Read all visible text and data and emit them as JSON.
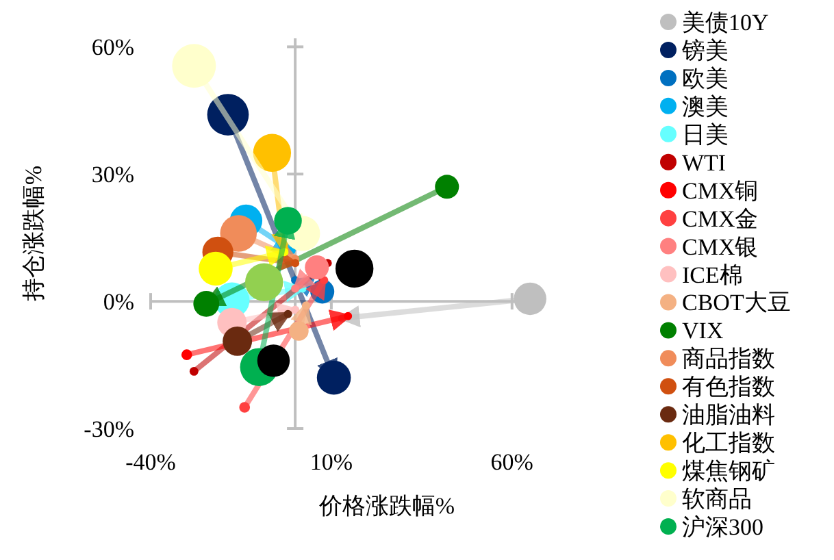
{
  "chart_data": {
    "type": "bubble",
    "xlabel": "价格涨跌幅%",
    "ylabel": "持仓涨跌幅%",
    "xlim": [
      -40,
      68
    ],
    "ylim": [
      -30,
      62
    ],
    "xticks": [
      {
        "value": -40,
        "label": "-40%"
      },
      {
        "value": 10,
        "label": "10%"
      },
      {
        "value": 60,
        "label": "60%"
      }
    ],
    "yticks": [
      {
        "value": -30,
        "label": "-30%"
      },
      {
        "value": 0,
        "label": "0%"
      },
      {
        "value": 30,
        "label": "30%"
      },
      {
        "value": 60,
        "label": "60%"
      }
    ],
    "legend": "right",
    "series": [
      {
        "name": "美债10Y",
        "color": "#bfbfbf",
        "x": [
          65,
          13
        ],
        "values": [
          0.6,
          -4
        ],
        "sizes": [
          0.55,
          null
        ]
      },
      {
        "name": "镑美",
        "color": "#002060",
        "x": [
          -18.6,
          10.7
        ],
        "values": [
          44,
          -18
        ],
        "sizes": [
          0.9,
          0.6
        ]
      },
      {
        "name": "欧美",
        "color": "#0070c0",
        "x": [
          7.5,
          0
        ],
        "values": [
          2.3,
          5
        ],
        "sizes": [
          0.3,
          null
        ]
      },
      {
        "name": "澳美",
        "color": "#00b0f0",
        "x": [
          -13.6,
          -1
        ],
        "values": [
          19,
          12
        ],
        "sizes": [
          0.55,
          null
        ]
      },
      {
        "name": "日美",
        "color": "#66ffff",
        "x": [
          -17.5,
          2
        ],
        "values": [
          0.3,
          3
        ],
        "sizes": [
          0.65,
          null
        ]
      },
      {
        "name": "WTI",
        "color": "#c00000",
        "x": [
          -28,
          9
        ],
        "values": [
          -16.5,
          9
        ],
        "sizes": [
          0.04,
          null
        ]
      },
      {
        "name": "CMX铜",
        "color": "#ff0000",
        "x": [
          -30,
          14.6
        ],
        "values": [
          -12.6,
          -3.5
        ],
        "sizes": [
          0.06,
          null
        ]
      },
      {
        "name": "CMX金",
        "color": "#ff4040",
        "x": [
          -14,
          8
        ],
        "values": [
          -25,
          5
        ],
        "sizes": [
          0.06,
          null
        ]
      },
      {
        "name": "CMX银",
        "color": "#ff8080",
        "x": [
          6,
          0
        ],
        "values": [
          8,
          3
        ],
        "sizes": [
          0.3,
          null
        ]
      },
      {
        "name": "ICE棉",
        "color": "#ffc0c0",
        "x": [
          -17.5,
          0
        ],
        "values": [
          -5,
          -2
        ],
        "sizes": [
          0.45,
          null
        ]
      },
      {
        "name": "CBOT大豆",
        "color": "#f4b183",
        "x": [
          1,
          3
        ],
        "values": [
          -7,
          -1
        ],
        "sizes": [
          0.2,
          null
        ]
      },
      {
        "name": "VIX",
        "color": "#008000",
        "x": [
          42,
          -24.6
        ],
        "values": [
          27,
          -0.6
        ],
        "sizes": [
          0.3,
          0.35
        ]
      },
      {
        "name": "商品指数",
        "color": "#f08c5a",
        "x": [
          -15.7,
          0
        ],
        "values": [
          16,
          10
        ],
        "sizes": [
          0.7,
          null
        ]
      },
      {
        "name": "有色指数",
        "color": "#d05010",
        "x": [
          -21.4,
          0
        ],
        "values": [
          11.6,
          9
        ],
        "sizes": [
          0.5,
          null
        ]
      },
      {
        "name": "油脂油料",
        "color": "#6a2a10",
        "x": [
          -16,
          -2
        ],
        "values": [
          -9.4,
          -3
        ],
        "sizes": [
          0.45,
          null
        ]
      },
      {
        "name": "化工指数",
        "color": "#ffc000",
        "x": [
          -6.4,
          -3
        ],
        "values": [
          35,
          12
        ],
        "sizes": [
          0.75,
          null
        ]
      },
      {
        "name": "煤焦钢矿",
        "color": "#ffff00",
        "x": [
          -22,
          -3
        ],
        "values": [
          7.7,
          11.6
        ],
        "sizes": [
          0.6,
          null
        ]
      },
      {
        "name": "软商品",
        "color": "#ffffcc",
        "x": [
          -28,
          2
        ],
        "values": [
          55.5,
          16
        ],
        "sizes": [
          1,
          0.65
        ]
      },
      {
        "name": "沪深300",
        "color": "#00b050",
        "x": [
          -10,
          -2
        ],
        "values": [
          -15.5,
          19
        ],
        "sizes": [
          0.75,
          0.4
        ]
      },
      {
        "color": "#92d050",
        "x": [
          -8.6
        ],
        "values": [
          4.5
        ],
        "sizes": [
          0.75
        ]
      },
      {
        "color": "#000000",
        "x": [
          16.4
        ],
        "values": [
          7.7
        ],
        "sizes": [
          0.75
        ]
      },
      {
        "color": "#000000",
        "x": [
          -6
        ],
        "values": [
          -14
        ],
        "sizes": [
          0.55
        ]
      }
    ]
  }
}
